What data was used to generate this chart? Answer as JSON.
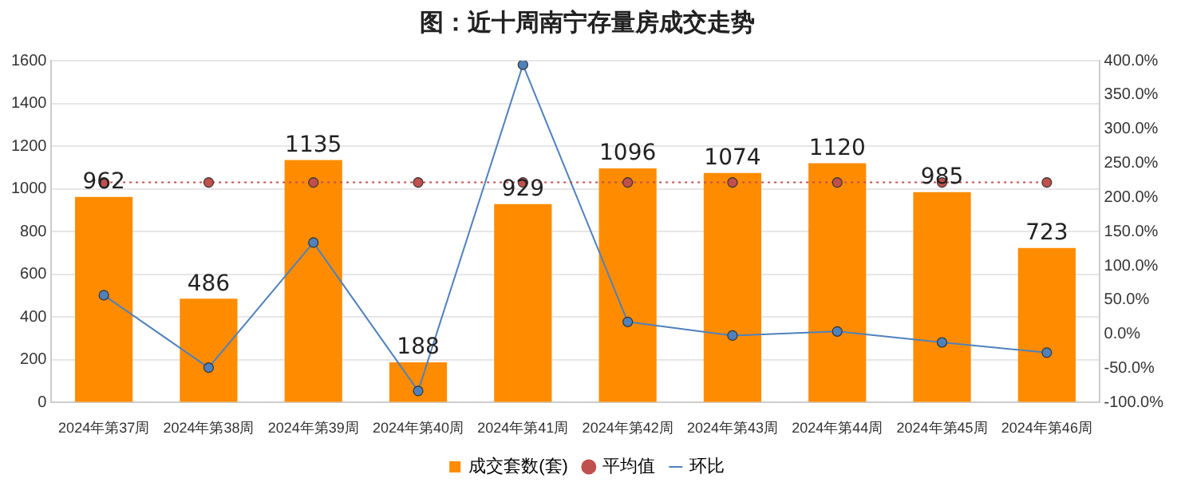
{
  "chart_data": {
    "type": "bar",
    "title": "图：近十周南宁存量房成交走势",
    "categories": [
      "2024年第37周",
      "2024年第38周",
      "2024年第39周",
      "2024年第40周",
      "2024年第41周",
      "2024年第42周",
      "2024年第43周",
      "2024年第44周",
      "2024年第45周",
      "2024年第46周"
    ],
    "series": [
      {
        "name": "成交套数(套)",
        "color": "#ff8c00",
        "values": [
          962,
          486,
          1135,
          188,
          929,
          1096,
          1074,
          1120,
          985,
          723
        ],
        "value_labels": [
          "962",
          "486",
          "1135",
          "188",
          "929",
          "1096",
          "1074",
          "1120",
          "985",
          "723"
        ]
      },
      {
        "name": "平均值",
        "type": "line",
        "color": "#c0504d",
        "line_style": "dotted",
        "values": [
          1030,
          1030,
          1030,
          1030,
          1030,
          1030,
          1030,
          1030,
          1030,
          1030
        ]
      },
      {
        "name": "环比",
        "type": "line",
        "axis": "y2",
        "color": "#4f81bd",
        "line_style": "solid",
        "values": [
          57,
          -49,
          134,
          -83,
          394,
          18,
          -2,
          4,
          -12,
          -27
        ]
      }
    ],
    "ylim": [
      0,
      1600
    ],
    "yticks": [
      0,
      200,
      400,
      600,
      800,
      1000,
      1200,
      1400,
      1600
    ],
    "y2lim": [
      -100,
      400
    ],
    "y2ticks": [
      {
        "value": -100,
        "label": "-100.0%"
      },
      {
        "value": -50,
        "label": "-50.0%"
      },
      {
        "value": 0,
        "label": "0.0%"
      },
      {
        "value": 50,
        "label": "50.0%"
      },
      {
        "value": 100,
        "label": "100.0%"
      },
      {
        "value": 150,
        "label": "150.0%"
      },
      {
        "value": 200,
        "label": "200.0%"
      },
      {
        "value": 250,
        "label": "250.0%"
      },
      {
        "value": 300,
        "label": "300.0%"
      },
      {
        "value": 350,
        "label": "350.0%"
      },
      {
        "value": 400,
        "label": "400.0%"
      }
    ],
    "grid": "y",
    "legend": "bottom",
    "marker": "circle"
  }
}
